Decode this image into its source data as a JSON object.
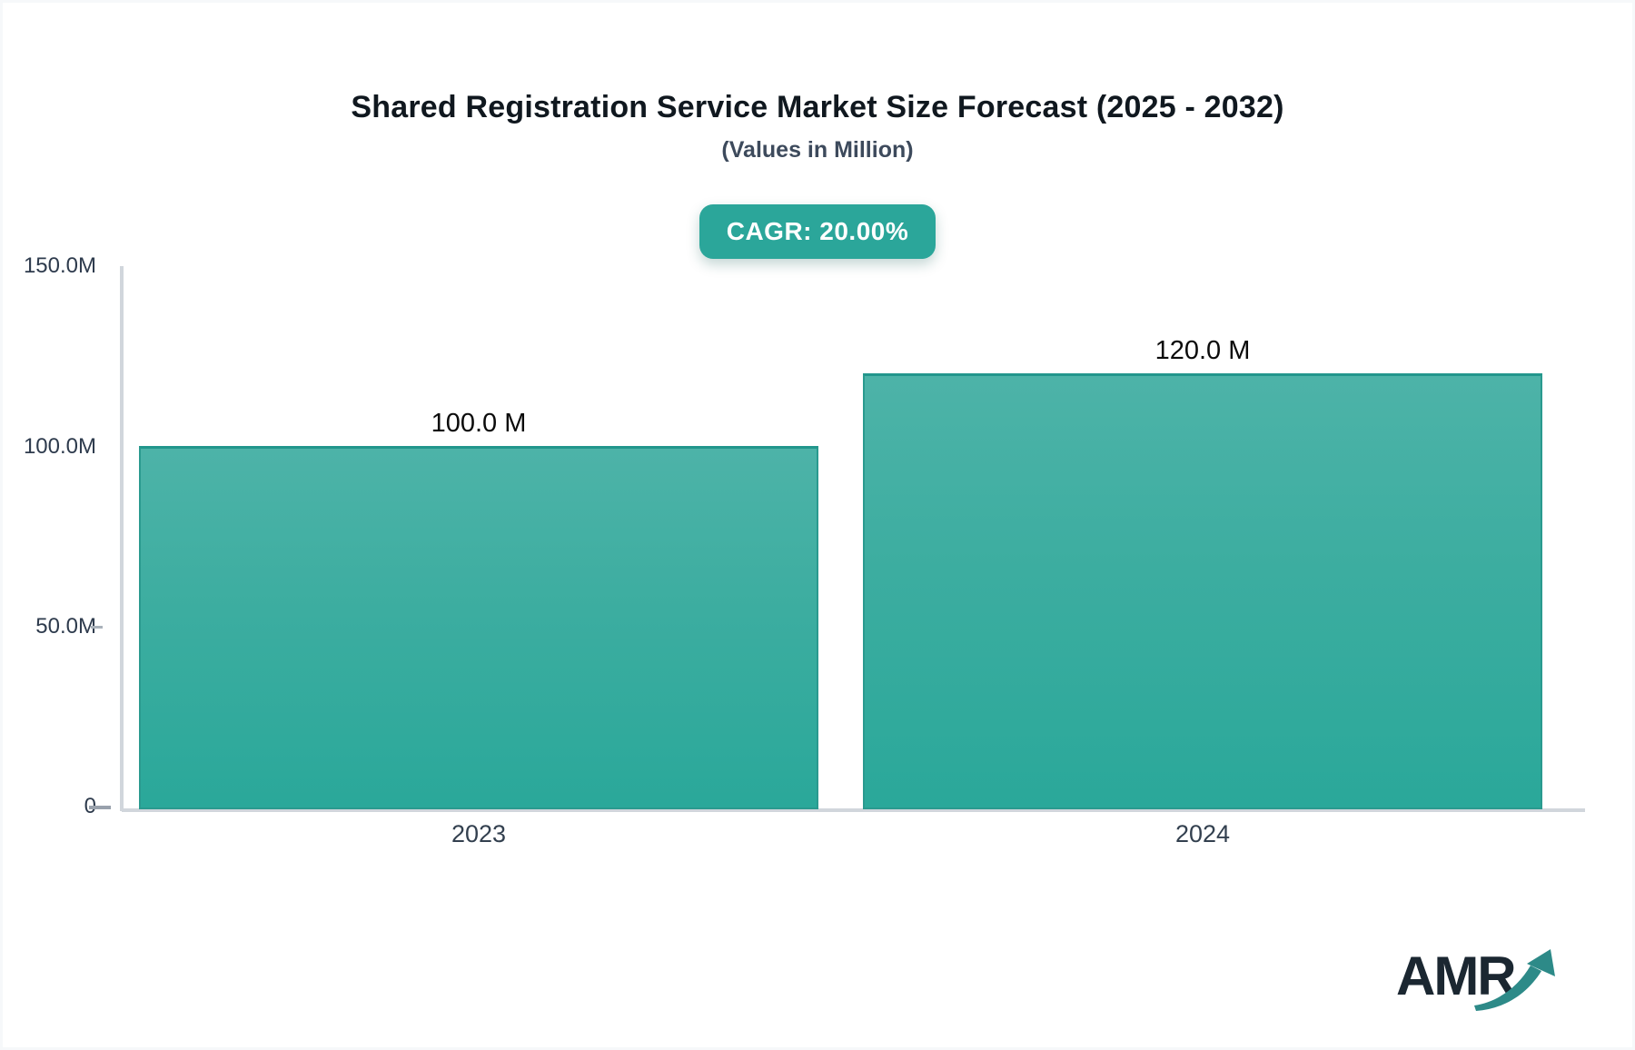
{
  "title": "Shared Registration Service Market Size Forecast (2025 - 2032)",
  "subtitle": "(Values in Million)",
  "badge": {
    "label": "CAGR: 20.00%"
  },
  "chart_data": {
    "type": "bar",
    "title": "Shared Registration Service Market Size Forecast (2025 - 2032)",
    "subtitle": "(Values in Million)",
    "cagr_percent": 20.0,
    "categories": [
      "2023",
      "2024"
    ],
    "values": [
      100.0,
      120.0
    ],
    "value_unit": "Million",
    "value_labels": [
      "100.0 M",
      "120.0 M"
    ],
    "xlabel": "",
    "ylabel": "",
    "ylim": [
      0,
      150
    ],
    "y_tick_labels": [
      "150.0M",
      "100.0M",
      "50.0M",
      "0"
    ],
    "grid": false,
    "legend_position": "none",
    "bar_colors": {
      "fill_top": "#4db3a8",
      "fill_bottom": "#2aa89a",
      "border": "#22968c"
    }
  },
  "logo": {
    "text": "AMR",
    "text_color": "#1b2731",
    "arrow_color": "#2d8a88"
  },
  "colors": {
    "accent_teal": "#2ba69a",
    "axis_line": "#d1d6dc",
    "tick_label": "#2e3b4d",
    "title_text": "#10181f",
    "subtitle_text": "#3d4a5c",
    "background": "#ffffff"
  }
}
